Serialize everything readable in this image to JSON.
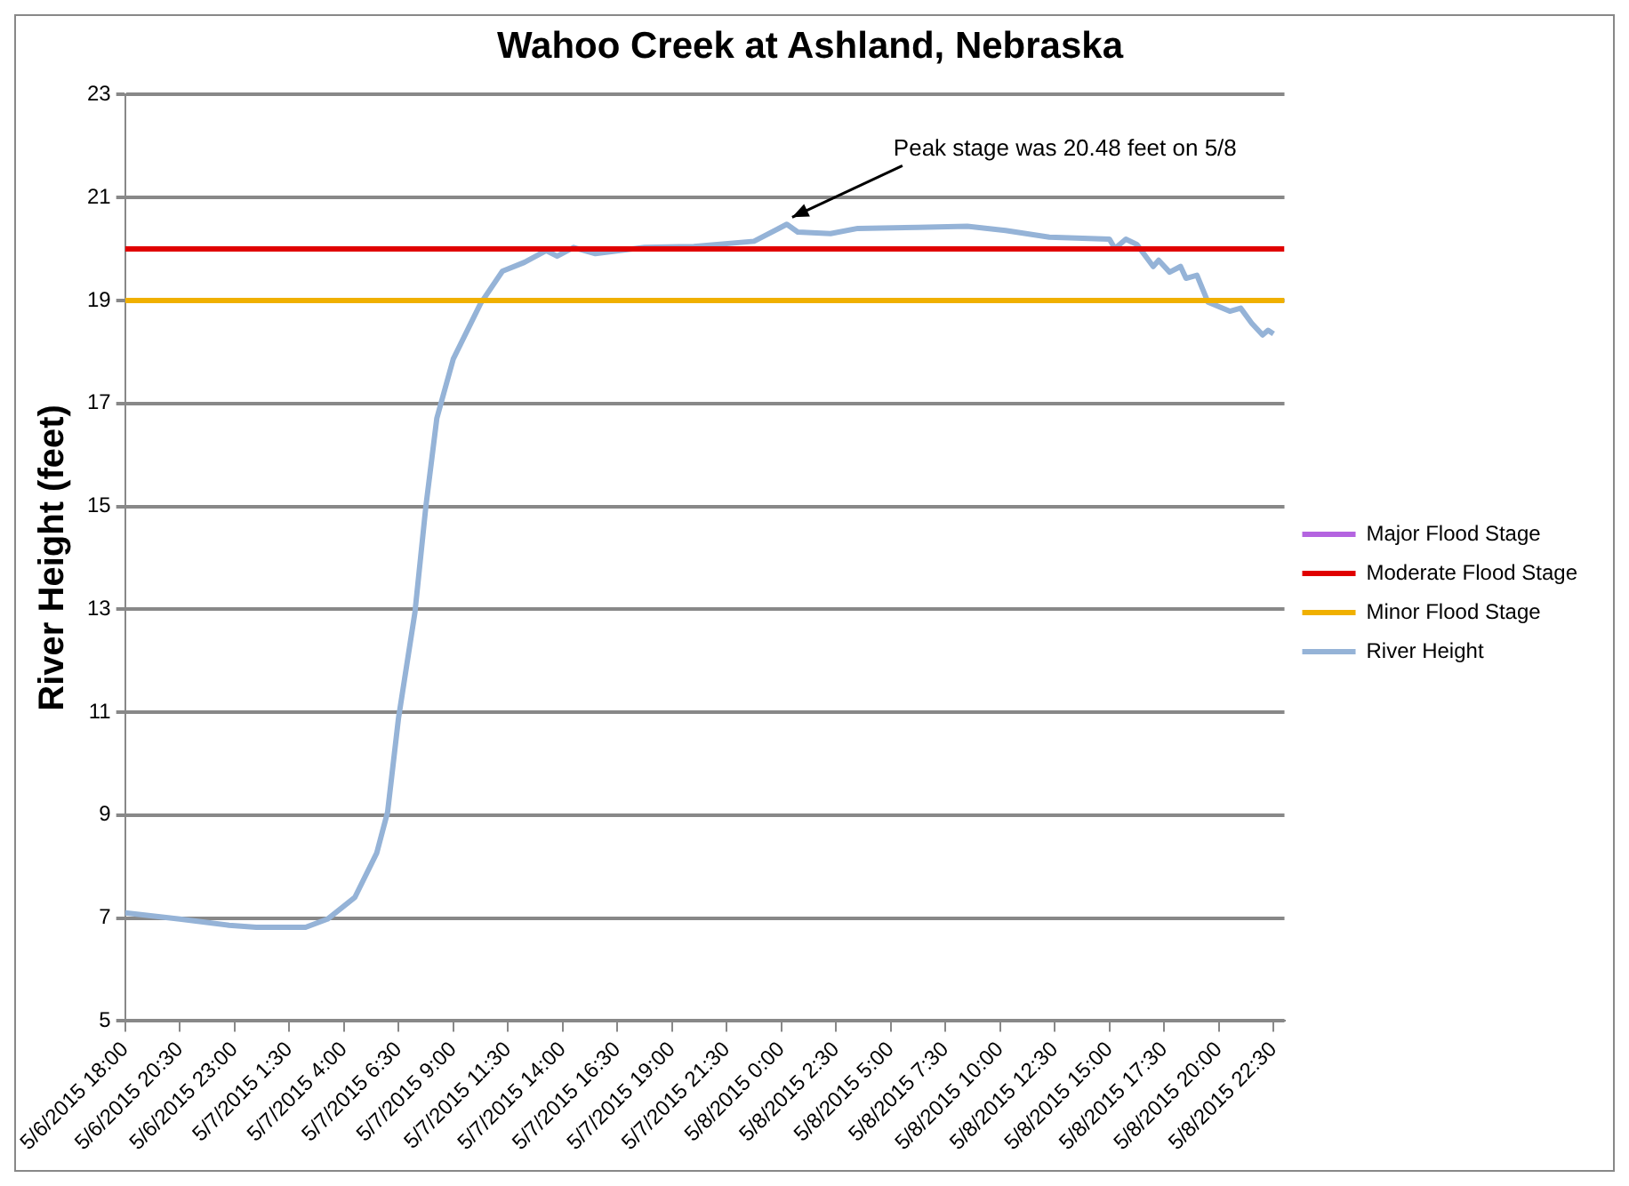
{
  "chart_data": {
    "type": "line",
    "title": "Wahoo Creek at Ashland, Nebraska",
    "ylabel": "River Height (feet)",
    "xlim": [
      "2015-05-06T18:00",
      "2015-05-08T23:00"
    ],
    "xticks": [
      {
        "value": "2015-05-06T18:00",
        "label": "5/6/2015 18:00"
      },
      {
        "value": "2015-05-06T20:30",
        "label": "5/6/2015 20:30"
      },
      {
        "value": "2015-05-06T23:00",
        "label": "5/6/2015 23:00"
      },
      {
        "value": "2015-05-07T01:30",
        "label": "5/7/2015 1:30"
      },
      {
        "value": "2015-05-07T04:00",
        "label": "5/7/2015 4:00"
      },
      {
        "value": "2015-05-07T06:30",
        "label": "5/7/2015 6:30"
      },
      {
        "value": "2015-05-07T09:00",
        "label": "5/7/2015 9:00"
      },
      {
        "value": "2015-05-07T11:30",
        "label": "5/7/2015 11:30"
      },
      {
        "value": "2015-05-07T14:00",
        "label": "5/7/2015 14:00"
      },
      {
        "value": "2015-05-07T16:30",
        "label": "5/7/2015 16:30"
      },
      {
        "value": "2015-05-07T19:00",
        "label": "5/7/2015 19:00"
      },
      {
        "value": "2015-05-07T21:30",
        "label": "5/7/2015 21:30"
      },
      {
        "value": "2015-05-08T00:00",
        "label": "5/8/2015 0:00"
      },
      {
        "value": "2015-05-08T02:30",
        "label": "5/8/2015 2:30"
      },
      {
        "value": "2015-05-08T05:00",
        "label": "5/8/2015 5:00"
      },
      {
        "value": "2015-05-08T07:30",
        "label": "5/8/2015 7:30"
      },
      {
        "value": "2015-05-08T10:00",
        "label": "5/8/2015 10:00"
      },
      {
        "value": "2015-05-08T12:30",
        "label": "5/8/2015 12:30"
      },
      {
        "value": "2015-05-08T15:00",
        "label": "5/8/2015 15:00"
      },
      {
        "value": "2015-05-08T17:30",
        "label": "5/8/2015 17:30"
      },
      {
        "value": "2015-05-08T20:00",
        "label": "5/8/2015 20:00"
      },
      {
        "value": "2015-05-08T22:30",
        "label": "5/8/2015 22:30"
      }
    ],
    "ylim": [
      5,
      23
    ],
    "yticks": [
      5,
      7,
      9,
      11,
      13,
      15,
      17,
      19,
      21,
      23
    ],
    "grid": "y",
    "legend": "right",
    "marker": "none",
    "line_style": "solid",
    "series": [
      {
        "name": "Major Flood Stage",
        "color": "#b464e0"
      },
      {
        "name": "Moderate Flood Stage",
        "color": "#e00000",
        "x": [
          "2015-05-06T18:00",
          "2015-05-08T23:00"
        ],
        "values": [
          20,
          20
        ]
      },
      {
        "name": "Minor Flood Stage",
        "color": "#f0b000",
        "x": [
          "2015-05-06T18:00",
          "2015-05-08T23:00"
        ],
        "values": [
          19,
          19
        ]
      },
      {
        "name": "River Height",
        "color": "#95b3d7",
        "x": [
          "2015-05-06T18:00",
          "2015-05-06T20:30",
          "2015-05-06T22:45",
          "2015-05-07T00:00",
          "2015-05-07T02:15",
          "2015-05-07T03:15",
          "2015-05-07T04:30",
          "2015-05-07T05:30",
          "2015-05-07T06:00",
          "2015-05-07T06:30",
          "2015-05-07T07:15",
          "2015-05-07T07:45",
          "2015-05-07T08:15",
          "2015-05-07T09:00",
          "2015-05-07T10:15",
          "2015-05-07T11:15",
          "2015-05-07T12:15",
          "2015-05-07T13:15",
          "2015-05-07T13:45",
          "2015-05-07T14:30",
          "2015-05-07T15:30",
          "2015-05-07T17:45",
          "2015-05-07T20:00",
          "2015-05-07T22:45",
          "2015-05-08T00:15",
          "2015-05-08T00:45",
          "2015-05-08T02:15",
          "2015-05-08T03:30",
          "2015-05-08T06:15",
          "2015-05-08T08:30",
          "2015-05-08T10:15",
          "2015-05-08T12:15",
          "2015-05-08T15:00",
          "2015-05-08T15:15",
          "2015-05-08T15:45",
          "2015-05-08T16:15",
          "2015-05-08T17:00",
          "2015-05-08T17:15",
          "2015-05-08T17:45",
          "2015-05-08T18:15",
          "2015-05-08T18:30",
          "2015-05-08T19:00",
          "2015-05-08T19:30",
          "2015-05-08T20:30",
          "2015-05-08T21:00",
          "2015-05-08T21:30",
          "2015-05-08T22:00",
          "2015-05-08T22:15",
          "2015-05-08T22:30"
        ],
        "values": [
          7.1,
          6.98,
          6.86,
          6.82,
          6.82,
          6.98,
          7.4,
          8.26,
          9.06,
          10.89,
          12.94,
          15.0,
          16.71,
          17.86,
          18.94,
          19.57,
          19.74,
          19.97,
          19.86,
          20.03,
          19.91,
          20.03,
          20.05,
          20.15,
          20.48,
          20.33,
          20.3,
          20.4,
          20.42,
          20.44,
          20.36,
          20.23,
          20.19,
          20.01,
          20.19,
          20.09,
          19.66,
          19.78,
          19.55,
          19.66,
          19.43,
          19.49,
          18.97,
          18.79,
          18.85,
          18.56,
          18.33,
          18.42,
          18.35
        ]
      }
    ],
    "annotations": [
      {
        "text": "Peak stage was 20.48 feet on 5/8",
        "x": "2015-05-08T00:15",
        "y": 20.48
      }
    ]
  }
}
